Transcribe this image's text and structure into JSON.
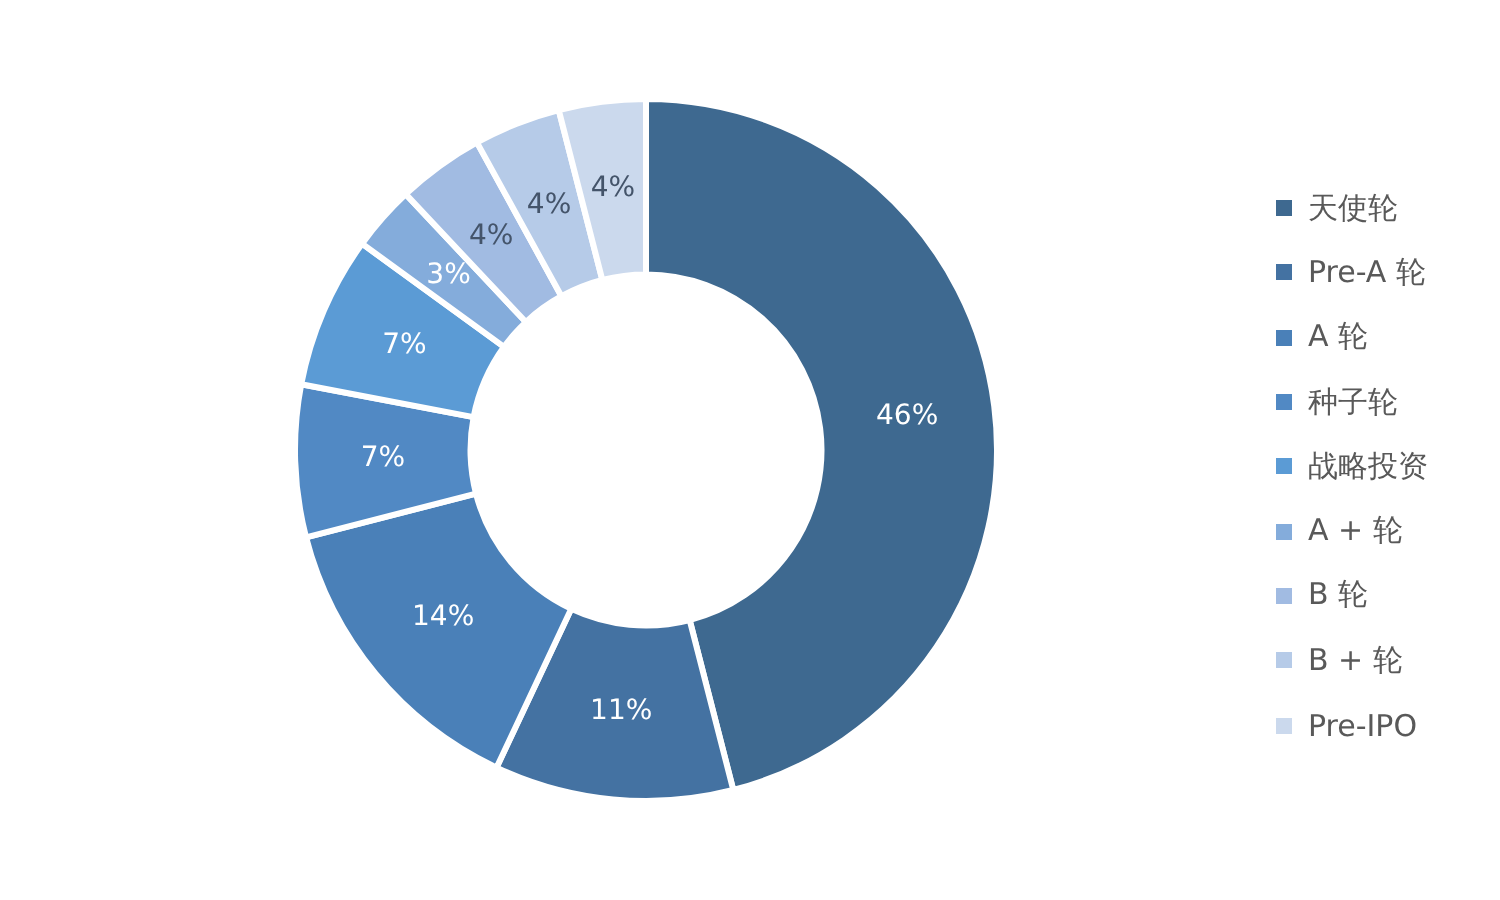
{
  "chart_data": {
    "type": "donut",
    "categories": [
      "天使轮",
      "Pre-A 轮",
      "A 轮",
      "种子轮",
      "战略投资",
      "A + 轮",
      "B 轮",
      "B + 轮",
      "Pre-IPO"
    ],
    "values": [
      46,
      11,
      14,
      7,
      7,
      3,
      4,
      4,
      4
    ],
    "value_labels": [
      "46%",
      "11%",
      "14%",
      "7%",
      "7%",
      "3%",
      "4%",
      "4%",
      "4%"
    ],
    "colors": [
      "#3e6990",
      "#4472a2",
      "#4a80b8",
      "#5189c4",
      "#5b9bd5",
      "#84acdb",
      "#a1bbe2",
      "#b6cbe8",
      "#cbd9ed"
    ],
    "legend": "right"
  }
}
